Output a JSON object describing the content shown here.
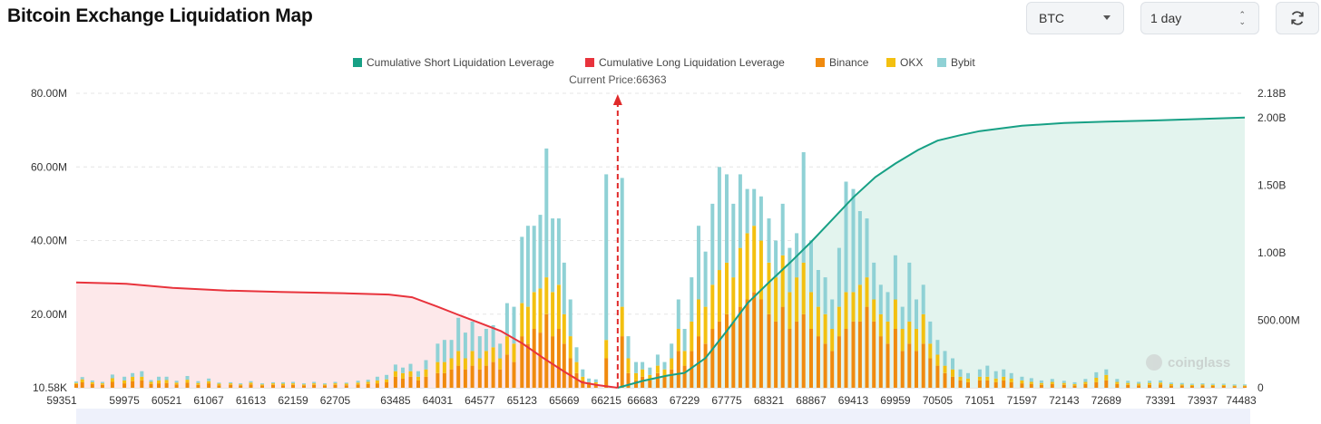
{
  "page": {
    "title": "Bitcoin Exchange Liquidation Map"
  },
  "controls": {
    "coin": "BTC",
    "period": "1 day",
    "refresh_icon": "refresh-icon"
  },
  "colors": {
    "short_line": "#17a085",
    "short_fill": "#e3f4ee",
    "long_line": "#e8333c",
    "long_fill": "#fde8ea",
    "binance": "#f08a0e",
    "okx": "#f3c010",
    "bybit": "#8fd1d5",
    "grid": "#e6e6e6",
    "current_price": "#e02a2a",
    "range_bar": "#eef1fb"
  },
  "watermark": "coinglass",
  "chart_data": {
    "type": "bar",
    "title": "Bitcoin Exchange Liquidation Map",
    "legend": [
      {
        "name": "Cumulative Short Liquidation Leverage",
        "color": "#17a085"
      },
      {
        "name": "Cumulative Long Liquidation Leverage",
        "color": "#e8333c"
      },
      {
        "name": "Binance",
        "color": "#f08a0e"
      },
      {
        "name": "OKX",
        "color": "#f3c010"
      },
      {
        "name": "Bybit",
        "color": "#8fd1d5"
      }
    ],
    "legend_position": "top-center",
    "current_price_label": "Current Price:66363",
    "current_price": 66363,
    "xlim": [
      59351,
      74483
    ],
    "x_ticks": [
      59351,
      59975,
      60521,
      61067,
      61613,
      62159,
      62705,
      63485,
      64031,
      64577,
      65123,
      65669,
      66215,
      66683,
      67229,
      67775,
      68321,
      68867,
      69413,
      69959,
      70505,
      71051,
      71597,
      72143,
      72689,
      73391,
      73937,
      74483
    ],
    "y_left": {
      "ticks": [
        "10.58K",
        "20.00M",
        "40.00M",
        "60.00M",
        "80.00M"
      ],
      "ylim": [
        0,
        80
      ]
    },
    "y_right": {
      "ticks": [
        "0",
        "500.00M",
        "1.00B",
        "1.50B",
        "2.00B",
        "2.18B"
      ],
      "ylim": [
        0,
        2.18
      ]
    },
    "bars": [
      {
        "x": 59351,
        "binance": 1,
        "okx": 0.3,
        "bybit": 0.4
      },
      {
        "x": 59430,
        "binance": 1.5,
        "okx": 0.8,
        "bybit": 0.6
      },
      {
        "x": 59560,
        "binance": 1,
        "okx": 0.5,
        "bybit": 0.5
      },
      {
        "x": 59690,
        "binance": 0.8,
        "okx": 0.4,
        "bybit": 0.4
      },
      {
        "x": 59820,
        "binance": 1.6,
        "okx": 1,
        "bybit": 1
      },
      {
        "x": 59975,
        "binance": 1.2,
        "okx": 0.8,
        "bybit": 1
      },
      {
        "x": 60080,
        "binance": 1.8,
        "okx": 1.2,
        "bybit": 1
      },
      {
        "x": 60200,
        "binance": 2,
        "okx": 1,
        "bybit": 1.5
      },
      {
        "x": 60320,
        "binance": 1,
        "okx": 0.6,
        "bybit": 0.5
      },
      {
        "x": 60420,
        "binance": 1.2,
        "okx": 0.8,
        "bybit": 1
      },
      {
        "x": 60521,
        "binance": 1.3,
        "okx": 0.8,
        "bybit": 0.9
      },
      {
        "x": 60650,
        "binance": 0.9,
        "okx": 0.5,
        "bybit": 0.5
      },
      {
        "x": 60790,
        "binance": 1.4,
        "okx": 0.8,
        "bybit": 1
      },
      {
        "x": 60930,
        "binance": 0.8,
        "okx": 0.5,
        "bybit": 0.5
      },
      {
        "x": 61067,
        "binance": 1.2,
        "okx": 0.6,
        "bybit": 0.7
      },
      {
        "x": 61200,
        "binance": 0.7,
        "okx": 0.4,
        "bybit": 0.3
      },
      {
        "x": 61350,
        "binance": 0.8,
        "okx": 0.4,
        "bybit": 0.3
      },
      {
        "x": 61480,
        "binance": 0.6,
        "okx": 0.3,
        "bybit": 0.3
      },
      {
        "x": 61613,
        "binance": 0.9,
        "okx": 0.5,
        "bybit": 0.4
      },
      {
        "x": 61760,
        "binance": 0.6,
        "okx": 0.3,
        "bybit": 0.3
      },
      {
        "x": 61900,
        "binance": 0.8,
        "okx": 0.4,
        "bybit": 0.3
      },
      {
        "x": 62030,
        "binance": 0.7,
        "okx": 0.4,
        "bybit": 0.4
      },
      {
        "x": 62159,
        "binance": 0.8,
        "okx": 0.4,
        "bybit": 0.4
      },
      {
        "x": 62300,
        "binance": 0.6,
        "okx": 0.3,
        "bybit": 0.3
      },
      {
        "x": 62430,
        "binance": 0.8,
        "okx": 0.4,
        "bybit": 0.4
      },
      {
        "x": 62570,
        "binance": 0.6,
        "okx": 0.3,
        "bybit": 0.3
      },
      {
        "x": 62705,
        "binance": 0.8,
        "okx": 0.4,
        "bybit": 0.4
      },
      {
        "x": 62850,
        "binance": 0.7,
        "okx": 0.4,
        "bybit": 0.3
      },
      {
        "x": 63000,
        "binance": 0.9,
        "okx": 0.5,
        "bybit": 0.5
      },
      {
        "x": 63130,
        "binance": 1,
        "okx": 0.6,
        "bybit": 0.6
      },
      {
        "x": 63250,
        "binance": 1.2,
        "okx": 0.8,
        "bybit": 1
      },
      {
        "x": 63370,
        "binance": 1.5,
        "okx": 0.8,
        "bybit": 1.2
      },
      {
        "x": 63485,
        "binance": 3,
        "okx": 1.5,
        "bybit": 1.8
      },
      {
        "x": 63580,
        "binance": 2.5,
        "okx": 1.5,
        "bybit": 1.5
      },
      {
        "x": 63680,
        "binance": 3,
        "okx": 1.5,
        "bybit": 2
      },
      {
        "x": 63780,
        "binance": 2,
        "okx": 1,
        "bybit": 1.5
      },
      {
        "x": 63880,
        "binance": 3,
        "okx": 2,
        "bybit": 2.5
      },
      {
        "x": 64031,
        "binance": 4,
        "okx": 3,
        "bybit": 5
      },
      {
        "x": 64120,
        "binance": 4,
        "okx": 3,
        "bybit": 6
      },
      {
        "x": 64210,
        "binance": 5,
        "okx": 3,
        "bybit": 5
      },
      {
        "x": 64300,
        "binance": 6,
        "okx": 4,
        "bybit": 9
      },
      {
        "x": 64390,
        "binance": 5,
        "okx": 3,
        "bybit": 7
      },
      {
        "x": 64480,
        "binance": 6,
        "okx": 4,
        "bybit": 8
      },
      {
        "x": 64577,
        "binance": 5,
        "okx": 3,
        "bybit": 6
      },
      {
        "x": 64660,
        "binance": 6,
        "okx": 4,
        "bybit": 6
      },
      {
        "x": 64750,
        "binance": 7,
        "okx": 4,
        "bybit": 6
      },
      {
        "x": 64840,
        "binance": 5,
        "okx": 3,
        "bybit": 4
      },
      {
        "x": 64930,
        "binance": 9,
        "okx": 5,
        "bybit": 9
      },
      {
        "x": 65020,
        "binance": 7,
        "okx": 5,
        "bybit": 10
      },
      {
        "x": 65123,
        "binance": 14,
        "okx": 9,
        "bybit": 18
      },
      {
        "x": 65200,
        "binance": 12,
        "okx": 10,
        "bybit": 22
      },
      {
        "x": 65280,
        "binance": 16,
        "okx": 10,
        "bybit": 18
      },
      {
        "x": 65360,
        "binance": 15,
        "okx": 12,
        "bybit": 20
      },
      {
        "x": 65440,
        "binance": 20,
        "okx": 10,
        "bybit": 35
      },
      {
        "x": 65520,
        "binance": 14,
        "okx": 12,
        "bybit": 20
      },
      {
        "x": 65600,
        "binance": 16,
        "okx": 12,
        "bybit": 18
      },
      {
        "x": 65669,
        "binance": 12,
        "okx": 8,
        "bybit": 14
      },
      {
        "x": 65750,
        "binance": 8,
        "okx": 6,
        "bybit": 10
      },
      {
        "x": 65830,
        "binance": 4,
        "okx": 3,
        "bybit": 4
      },
      {
        "x": 65910,
        "binance": 2,
        "okx": 1,
        "bybit": 2
      },
      {
        "x": 65990,
        "binance": 1,
        "okx": 0.5,
        "bybit": 1
      },
      {
        "x": 66080,
        "binance": 1,
        "okx": 0.5,
        "bybit": 0.8
      },
      {
        "x": 66215,
        "binance": 8,
        "okx": 5,
        "bybit": 45
      },
      {
        "x": 66420,
        "binance": 14,
        "okx": 8,
        "bybit": 35
      },
      {
        "x": 66500,
        "binance": 4,
        "okx": 4,
        "bybit": 6
      },
      {
        "x": 66600,
        "binance": 2,
        "okx": 2,
        "bybit": 3
      },
      {
        "x": 66683,
        "binance": 3,
        "okx": 2,
        "bybit": 2
      },
      {
        "x": 66780,
        "binance": 2,
        "okx": 1.5,
        "bybit": 2
      },
      {
        "x": 66880,
        "binance": 4,
        "okx": 2,
        "bybit": 3
      },
      {
        "x": 66970,
        "binance": 3,
        "okx": 2,
        "bybit": 2
      },
      {
        "x": 67060,
        "binance": 5,
        "okx": 3,
        "bybit": 4
      },
      {
        "x": 67150,
        "binance": 10,
        "okx": 6,
        "bybit": 8
      },
      {
        "x": 67229,
        "binance": 6,
        "okx": 4,
        "bybit": 6
      },
      {
        "x": 67320,
        "binance": 10,
        "okx": 8,
        "bybit": 12
      },
      {
        "x": 67410,
        "binance": 14,
        "okx": 10,
        "bybit": 20
      },
      {
        "x": 67500,
        "binance": 12,
        "okx": 10,
        "bybit": 15
      },
      {
        "x": 67590,
        "binance": 16,
        "okx": 12,
        "bybit": 22
      },
      {
        "x": 67680,
        "binance": 18,
        "okx": 14,
        "bybit": 28
      },
      {
        "x": 67775,
        "binance": 20,
        "okx": 14,
        "bybit": 24
      },
      {
        "x": 67860,
        "binance": 18,
        "okx": 12,
        "bybit": 20
      },
      {
        "x": 67950,
        "binance": 22,
        "okx": 16,
        "bybit": 20
      },
      {
        "x": 68040,
        "binance": 24,
        "okx": 18,
        "bybit": 12
      },
      {
        "x": 68130,
        "binance": 26,
        "okx": 18,
        "bybit": 10
      },
      {
        "x": 68220,
        "binance": 24,
        "okx": 16,
        "bybit": 12
      },
      {
        "x": 68321,
        "binance": 20,
        "okx": 14,
        "bybit": 12
      },
      {
        "x": 68410,
        "binance": 18,
        "okx": 12,
        "bybit": 10
      },
      {
        "x": 68500,
        "binance": 22,
        "okx": 14,
        "bybit": 14
      },
      {
        "x": 68590,
        "binance": 16,
        "okx": 10,
        "bybit": 12
      },
      {
        "x": 68680,
        "binance": 18,
        "okx": 12,
        "bybit": 12
      },
      {
        "x": 68770,
        "binance": 20,
        "okx": 14,
        "bybit": 30
      },
      {
        "x": 68867,
        "binance": 16,
        "okx": 10,
        "bybit": 14
      },
      {
        "x": 68960,
        "binance": 14,
        "okx": 8,
        "bybit": 10
      },
      {
        "x": 69050,
        "binance": 12,
        "okx": 8,
        "bybit": 10
      },
      {
        "x": 69140,
        "binance": 10,
        "okx": 6,
        "bybit": 8
      },
      {
        "x": 69230,
        "binance": 14,
        "okx": 8,
        "bybit": 16
      },
      {
        "x": 69320,
        "binance": 16,
        "okx": 10,
        "bybit": 30
      },
      {
        "x": 69413,
        "binance": 18,
        "okx": 8,
        "bybit": 28
      },
      {
        "x": 69500,
        "binance": 18,
        "okx": 10,
        "bybit": 20
      },
      {
        "x": 69590,
        "binance": 22,
        "okx": 8,
        "bybit": 16
      },
      {
        "x": 69680,
        "binance": 18,
        "okx": 6,
        "bybit": 10
      },
      {
        "x": 69770,
        "binance": 14,
        "okx": 6,
        "bybit": 8
      },
      {
        "x": 69860,
        "binance": 12,
        "okx": 6,
        "bybit": 8
      },
      {
        "x": 69959,
        "binance": 16,
        "okx": 8,
        "bybit": 12
      },
      {
        "x": 70050,
        "binance": 10,
        "okx": 6,
        "bybit": 6
      },
      {
        "x": 70140,
        "binance": 12,
        "okx": 6,
        "bybit": 16
      },
      {
        "x": 70230,
        "binance": 10,
        "okx": 6,
        "bybit": 8
      },
      {
        "x": 70320,
        "binance": 12,
        "okx": 8,
        "bybit": 8
      },
      {
        "x": 70410,
        "binance": 8,
        "okx": 4,
        "bybit": 6
      },
      {
        "x": 70505,
        "binance": 6,
        "okx": 3,
        "bybit": 4
      },
      {
        "x": 70600,
        "binance": 4,
        "okx": 2,
        "bybit": 4
      },
      {
        "x": 70700,
        "binance": 3,
        "okx": 2,
        "bybit": 3
      },
      {
        "x": 70800,
        "binance": 2,
        "okx": 1,
        "bybit": 2
      },
      {
        "x": 70900,
        "binance": 1.5,
        "okx": 1,
        "bybit": 1.5
      },
      {
        "x": 71051,
        "binance": 2,
        "okx": 1,
        "bybit": 2
      },
      {
        "x": 71150,
        "binance": 2,
        "okx": 1,
        "bybit": 3
      },
      {
        "x": 71260,
        "binance": 1.5,
        "okx": 1,
        "bybit": 2
      },
      {
        "x": 71360,
        "binance": 2,
        "okx": 1,
        "bybit": 2
      },
      {
        "x": 71460,
        "binance": 1.5,
        "okx": 1,
        "bybit": 1.5
      },
      {
        "x": 71597,
        "binance": 1.2,
        "okx": 0.8,
        "bybit": 1
      },
      {
        "x": 71720,
        "binance": 1,
        "okx": 0.6,
        "bybit": 1
      },
      {
        "x": 71850,
        "binance": 0.8,
        "okx": 0.5,
        "bybit": 0.7
      },
      {
        "x": 71990,
        "binance": 1,
        "okx": 0.6,
        "bybit": 0.8
      },
      {
        "x": 72143,
        "binance": 0.8,
        "okx": 0.5,
        "bybit": 0.6
      },
      {
        "x": 72280,
        "binance": 0.6,
        "okx": 0.4,
        "bybit": 0.5
      },
      {
        "x": 72420,
        "binance": 1,
        "okx": 0.6,
        "bybit": 0.8
      },
      {
        "x": 72560,
        "binance": 1.5,
        "okx": 1.2,
        "bybit": 1.5
      },
      {
        "x": 72689,
        "binance": 2,
        "okx": 1.5,
        "bybit": 1.5
      },
      {
        "x": 72830,
        "binance": 1,
        "okx": 0.6,
        "bybit": 0.8
      },
      {
        "x": 72970,
        "binance": 0.8,
        "okx": 0.5,
        "bybit": 0.6
      },
      {
        "x": 73110,
        "binance": 0.7,
        "okx": 0.4,
        "bybit": 0.5
      },
      {
        "x": 73250,
        "binance": 0.8,
        "okx": 0.5,
        "bybit": 0.6
      },
      {
        "x": 73391,
        "binance": 0.9,
        "okx": 0.5,
        "bybit": 0.6
      },
      {
        "x": 73530,
        "binance": 0.6,
        "okx": 0.4,
        "bybit": 0.4
      },
      {
        "x": 73670,
        "binance": 0.6,
        "okx": 0.3,
        "bybit": 0.4
      },
      {
        "x": 73800,
        "binance": 0.5,
        "okx": 0.3,
        "bybit": 0.3
      },
      {
        "x": 73937,
        "binance": 0.6,
        "okx": 0.3,
        "bybit": 0.3
      },
      {
        "x": 74070,
        "binance": 0.5,
        "okx": 0.3,
        "bybit": 0.3
      },
      {
        "x": 74210,
        "binance": 0.5,
        "okx": 0.3,
        "bybit": 0.3
      },
      {
        "x": 74350,
        "binance": 0.4,
        "okx": 0.2,
        "bybit": 0.3
      },
      {
        "x": 74483,
        "binance": 0.4,
        "okx": 0.2,
        "bybit": 0.3
      }
    ],
    "long_line": {
      "x": [
        59351,
        60000,
        60600,
        61300,
        62000,
        62800,
        63400,
        63700,
        64031,
        64300,
        64577,
        64850,
        65123,
        65400,
        65669,
        65900,
        66100,
        66363
      ],
      "y": [
        0.78,
        0.77,
        0.74,
        0.72,
        0.71,
        0.7,
        0.69,
        0.67,
        0.6,
        0.54,
        0.48,
        0.42,
        0.33,
        0.22,
        0.12,
        0.04,
        0.02,
        0.0
      ]
    },
    "short_line": {
      "x": [
        66363,
        66683,
        67000,
        67229,
        67500,
        67775,
        68050,
        68321,
        68600,
        68867,
        69150,
        69413,
        69700,
        69959,
        70250,
        70505,
        70800,
        71051,
        71597,
        72143,
        72689,
        73391,
        73937,
        74483
      ],
      "y": [
        0.0,
        0.05,
        0.09,
        0.11,
        0.22,
        0.42,
        0.63,
        0.78,
        0.93,
        1.08,
        1.25,
        1.41,
        1.56,
        1.66,
        1.76,
        1.83,
        1.87,
        1.9,
        1.94,
        1.96,
        1.97,
        1.98,
        1.99,
        2.0
      ]
    }
  }
}
